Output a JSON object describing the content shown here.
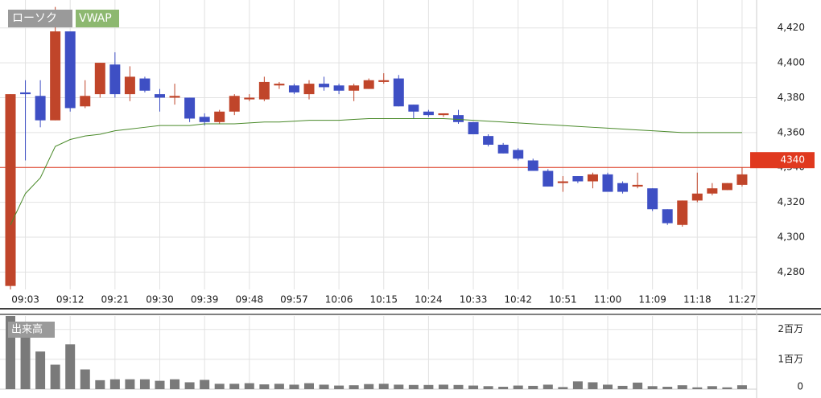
{
  "chart_data": {
    "type": "candlestick",
    "categories": [
      null,
      "09:03",
      null,
      null,
      "09:12",
      null,
      null,
      "09:21",
      null,
      null,
      "09:30",
      null,
      null,
      "09:39",
      null,
      null,
      "09:48",
      null,
      null,
      "09:57",
      null,
      null,
      "10:06",
      null,
      null,
      "10:15",
      null,
      null,
      "10:24",
      null,
      null,
      "10:33",
      null,
      null,
      "10:42",
      null,
      null,
      "10:51",
      null,
      null,
      "11:00",
      null,
      null,
      "11:09",
      null,
      null,
      "11:18",
      null,
      null,
      "11:27"
    ],
    "open": [
      4272,
      4383,
      4381,
      4367,
      4418,
      4375,
      4382,
      4399,
      4382,
      4391,
      4382,
      4380,
      4380,
      4369,
      4366,
      4372,
      4379,
      4379,
      4387,
      4387,
      4382,
      4388,
      4387,
      4384,
      4385,
      4389,
      4391,
      4376,
      4372,
      4370,
      4370,
      4366,
      4358,
      4353,
      4350,
      4344,
      4338,
      4331,
      4335,
      4332,
      4336,
      4331,
      4329,
      4328,
      4316,
      4307,
      4321,
      4325,
      4327,
      4330
    ],
    "high": [
      4382,
      4390,
      4390,
      4432,
      4418,
      4390,
      4400,
      4406,
      4398,
      4392,
      4385,
      4388,
      4380,
      4371,
      4373,
      4382,
      4382,
      4392,
      4389,
      4388,
      4390,
      4392,
      4388,
      4388,
      4391,
      4394,
      4393,
      4376,
      4373,
      4371,
      4373,
      4366,
      4359,
      4354,
      4351,
      4345,
      4339,
      4335,
      4335,
      4337,
      4337,
      4332,
      4337,
      4328,
      4316,
      4321,
      4337,
      4331,
      4331,
      4340
    ],
    "low": [
      4270,
      4344,
      4363,
      4367,
      4372,
      4374,
      4380,
      4380,
      4378,
      4383,
      4372,
      4376,
      4366,
      4364,
      4365,
      4370,
      4378,
      4378,
      4385,
      4382,
      4379,
      4384,
      4382,
      4378,
      4385,
      4388,
      4375,
      4368,
      4369,
      4369,
      4365,
      4359,
      4352,
      4348,
      4344,
      4338,
      4329,
      4326,
      4331,
      4328,
      4326,
      4325,
      4328,
      4315,
      4307,
      4306,
      4320,
      4324,
      4327,
      4329
    ],
    "close": [
      4382,
      4382,
      4367,
      4418,
      4374,
      4381,
      4400,
      4382,
      4392,
      4384,
      4380,
      4381,
      4368,
      4366,
      4372,
      4381,
      4380,
      4389,
      4388,
      4383,
      4388,
      4386,
      4384,
      4387,
      4390,
      4390,
      4375,
      4372,
      4370,
      4371,
      4366,
      4359,
      4353,
      4348,
      4345,
      4338,
      4329,
      4332,
      4332,
      4336,
      4326,
      4326,
      4330,
      4316,
      4308,
      4321,
      4325,
      4328,
      4331,
      4336
    ],
    "up_color": "#c0452a",
    "down_color": "#3e4fc4",
    "vwap": {
      "name": "VWAP",
      "color": "#4a8a2a",
      "values": [
        4307,
        4325,
        4334,
        4352,
        4356,
        4358,
        4359,
        4361,
        4362,
        4363,
        4364,
        4364,
        4364,
        4365,
        4365,
        4365,
        4365.5,
        4366,
        4366,
        4366.5,
        4367,
        4367,
        4367,
        4367.5,
        4368,
        4368,
        4368,
        4368,
        4368,
        4368,
        4367.5,
        4367,
        4366.5,
        4366,
        4365.5,
        4365,
        4364.5,
        4364,
        4363.5,
        4363,
        4362.5,
        4362,
        4361.5,
        4361,
        4360.5,
        4360,
        4360,
        4360,
        4360,
        4360
      ]
    },
    "candle_label": "ローソク",
    "ylim": [
      4270,
      4436
    ],
    "yticks": [
      {
        "value": 4280,
        "label": "4,280"
      },
      {
        "value": 4300,
        "label": "4,300"
      },
      {
        "value": 4320,
        "label": "4,320"
      },
      {
        "value": 4340,
        "label": "4,340"
      },
      {
        "value": 4360,
        "label": "4,360"
      },
      {
        "value": 4380,
        "label": "4,380"
      },
      {
        "value": 4400,
        "label": "4,400"
      },
      {
        "value": 4420,
        "label": "4,420"
      }
    ],
    "current_price": 4340,
    "current_price_color": "#e0391f",
    "volume": {
      "name": "出来高",
      "color": "#7a7a7a",
      "values": [
        2450000,
        2000000,
        1260000,
        820000,
        1500000,
        660000,
        300000,
        330000,
        330000,
        330000,
        280000,
        330000,
        230000,
        310000,
        180000,
        180000,
        200000,
        160000,
        180000,
        150000,
        200000,
        150000,
        120000,
        130000,
        170000,
        180000,
        150000,
        140000,
        140000,
        150000,
        140000,
        120000,
        100000,
        80000,
        120000,
        110000,
        150000,
        70000,
        260000,
        230000,
        150000,
        110000,
        220000,
        100000,
        80000,
        130000,
        60000,
        100000,
        60000,
        130000
      ],
      "ylim": [
        0,
        2450000
      ],
      "yticks": [
        0,
        {
          "value": 1000000,
          "label": "1百万"
        },
        {
          "value": 2000000,
          "label": "2百万"
        }
      ]
    },
    "grid": true
  }
}
